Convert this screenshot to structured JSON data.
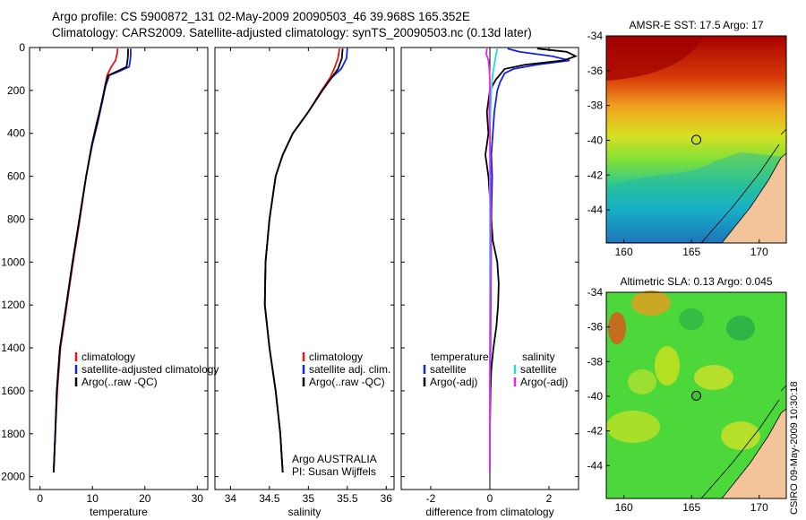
{
  "header": {
    "title_line1": "Argo profile: CS 5900872_131 02-May-2009 20090503_46 39.968S 165.352E",
    "title_line2": "Climatology: CARS2009. Satellite-adjusted climatology: synTS_20090503.nc (0.13d later)"
  },
  "credit": "CSIRO 09-May-2009 10:30:18",
  "colors": {
    "climatology": "#ee1111",
    "satellite": "#1122ee",
    "argo": "#000000",
    "sal_satellite": "#22dddd",
    "sal_argo": "#ee22ee",
    "land": "#f3c49a"
  },
  "chart_data": [
    {
      "type": "line",
      "id": "temperature",
      "xlabel": "temperature",
      "ylabel": "",
      "xlim": [
        -2,
        32
      ],
      "ylim": [
        2060,
        0
      ],
      "xticks": [
        0,
        10,
        20,
        30
      ],
      "yticks": [
        0,
        200,
        400,
        600,
        800,
        1000,
        1200,
        1400,
        1600,
        1800,
        2000
      ],
      "legend": {
        "position": "lower-left",
        "entries": [
          "climatology",
          "satellite-adjusted climatology",
          "Argo(..raw -QC)"
        ]
      },
      "series": [
        {
          "name": "climatology",
          "color_key": "climatology",
          "depth": [
            5,
            30,
            60,
            90,
            130,
            180,
            250,
            350,
            450,
            600,
            800,
            1000,
            1200,
            1400,
            1600,
            1800,
            1980
          ],
          "values": [
            14.8,
            14.7,
            14.4,
            13.6,
            12.8,
            12.4,
            11.9,
            10.8,
            9.9,
            8.8,
            7.6,
            6.3,
            5.1,
            3.9,
            3.3,
            2.9,
            2.6
          ]
        },
        {
          "name": "satellite-adjusted climatology",
          "color_key": "satellite",
          "depth": [
            5,
            30,
            60,
            90,
            110,
            130,
            180,
            250,
            350,
            450,
            600,
            800,
            1000,
            1200,
            1400,
            1600,
            1800,
            1980
          ],
          "values": [
            17.3,
            17.3,
            17.2,
            17.0,
            15.2,
            13.2,
            12.5,
            11.9,
            11.0,
            10.0,
            8.8,
            7.5,
            6.2,
            5.0,
            3.8,
            3.2,
            2.9,
            2.6
          ]
        },
        {
          "name": "Argo(..raw -QC)",
          "color_key": "argo",
          "depth": [
            5,
            30,
            60,
            90,
            110,
            130,
            180,
            250,
            350,
            450,
            600,
            800,
            1000,
            1200,
            1400,
            1600,
            1800,
            1980
          ],
          "values": [
            16.8,
            16.8,
            16.7,
            16.5,
            14.8,
            13.0,
            12.4,
            11.8,
            10.9,
            9.9,
            8.8,
            7.5,
            6.2,
            5.0,
            3.8,
            3.2,
            2.9,
            2.6
          ]
        }
      ]
    },
    {
      "type": "line",
      "id": "salinity",
      "xlabel": "salinity",
      "ylabel": "",
      "xlim": [
        33.8,
        36.1
      ],
      "ylim": [
        2060,
        0
      ],
      "xticks": [
        34,
        34.5,
        35,
        35.5,
        36
      ],
      "annotations": [
        "Argo AUSTRALIA",
        "PI: Susan Wijffels"
      ],
      "legend": {
        "position": "lower-right",
        "entries": [
          "climatology",
          "satellite adj. clim.",
          "Argo(..raw -QC)"
        ]
      },
      "series": [
        {
          "name": "climatology",
          "color_key": "climatology",
          "depth": [
            5,
            50,
            100,
            140,
            200,
            300,
            400,
            500,
            600,
            800,
            1000,
            1200,
            1400,
            1600,
            1800,
            1980
          ],
          "values": [
            35.4,
            35.38,
            35.33,
            35.28,
            35.17,
            35.0,
            34.8,
            34.67,
            34.58,
            34.5,
            34.45,
            34.44,
            34.5,
            34.58,
            34.64,
            34.67
          ]
        },
        {
          "name": "satellite adj. clim.",
          "color_key": "satellite",
          "depth": [
            5,
            50,
            100,
            140,
            200,
            300,
            400,
            500,
            600,
            800,
            1000,
            1200,
            1400,
            1600,
            1800,
            1980
          ],
          "values": [
            35.5,
            35.49,
            35.42,
            35.3,
            35.18,
            35.0,
            34.8,
            34.67,
            34.58,
            34.5,
            34.45,
            34.44,
            34.5,
            34.58,
            34.64,
            34.67
          ]
        },
        {
          "name": "Argo(..raw -QC)",
          "color_key": "argo",
          "depth": [
            5,
            50,
            100,
            140,
            200,
            300,
            400,
            500,
            600,
            800,
            1000,
            1200,
            1400,
            1600,
            1800,
            1980
          ],
          "values": [
            35.44,
            35.43,
            35.38,
            35.3,
            35.18,
            35.0,
            34.8,
            34.67,
            34.58,
            34.5,
            34.45,
            34.44,
            34.5,
            34.58,
            34.64,
            34.67
          ]
        }
      ]
    },
    {
      "type": "line",
      "id": "difference",
      "xlabel": "difference from climatology",
      "ylabel": "",
      "xlim": [
        -3,
        3
      ],
      "ylim": [
        2060,
        0
      ],
      "xticks": [
        -2,
        0,
        2
      ],
      "legend": {
        "position": "lower-center",
        "headers": [
          "temperature",
          "salinity"
        ],
        "entries": [
          "satellite",
          "Argo(-adj)",
          "satellite",
          "Argo(-adj)"
        ]
      },
      "series": [
        {
          "name": "temperature satellite",
          "color_key": "satellite",
          "depth": [
            5,
            20,
            40,
            60,
            80,
            100,
            120,
            160,
            200,
            300,
            400,
            500,
            600,
            800,
            1000,
            1200,
            1400,
            1600,
            1800,
            1980
          ],
          "values": [
            0.6,
            1.0,
            2.1,
            2.7,
            1.6,
            0.8,
            0.5,
            0.35,
            0.25,
            0.15,
            0.1,
            0.05,
            0.08,
            0.05,
            0.04,
            0.03,
            0.02,
            0.0,
            0.0,
            0.0
          ]
        },
        {
          "name": "temperature Argo(-adj)",
          "color_key": "argo",
          "depth": [
            5,
            20,
            40,
            60,
            80,
            100,
            150,
            200,
            300,
            400,
            500,
            600,
            700,
            800,
            900,
            1000,
            1100,
            1200,
            1300,
            1400,
            1500,
            1600,
            1800,
            1980
          ],
          "values": [
            1.6,
            2.6,
            2.9,
            2.5,
            1.2,
            0.5,
            0.2,
            0.0,
            -0.1,
            -0.05,
            -0.15,
            -0.05,
            0.0,
            0.05,
            0.1,
            0.25,
            0.3,
            0.28,
            0.22,
            0.12,
            0.05,
            0.02,
            0.0,
            0.0
          ]
        },
        {
          "name": "salinity satellite",
          "color_key": "sal_satellite",
          "depth": [
            5,
            40,
            80,
            120,
            200,
            300,
            400,
            600,
            800,
            1000,
            1200,
            1400,
            1600,
            1800,
            1980
          ],
          "values": [
            0.25,
            0.2,
            0.15,
            0.1,
            0.05,
            0.02,
            0.0,
            0.0,
            0.0,
            0.0,
            0.0,
            0.0,
            0.0,
            0.0,
            0.0
          ]
        },
        {
          "name": "salinity Argo(-adj)",
          "color_key": "sal_argo",
          "depth": [
            5,
            30,
            60,
            100,
            150,
            200,
            300,
            400,
            600,
            800,
            1000,
            1200,
            1400,
            1600,
            1800,
            1980
          ],
          "values": [
            -0.1,
            -0.12,
            -0.05,
            -0.02,
            0.0,
            0.0,
            -0.02,
            0.0,
            0.02,
            0.03,
            0.04,
            0.02,
            0.01,
            0.0,
            0.0,
            0.0
          ]
        }
      ]
    },
    {
      "type": "heatmap",
      "id": "sst_map",
      "title": "AMSR-E SST: 17.5 Argo: 17",
      "xlim": [
        158.7,
        172.0
      ],
      "ylim": [
        -45.9,
        -34.0
      ],
      "xticks": [
        160,
        165,
        170
      ],
      "yticks": [
        -34,
        -36,
        -38,
        -40,
        -42,
        -44
      ],
      "argo_position": [
        165.35,
        -39.97
      ]
    },
    {
      "type": "heatmap",
      "id": "sla_map",
      "title": "Altimetric SLA: 0.13 Argo: 0.045",
      "xlim": [
        158.7,
        172.0
      ],
      "ylim": [
        -45.9,
        -34.0
      ],
      "xticks": [
        160,
        165,
        170
      ],
      "yticks": [
        -34,
        -36,
        -38,
        -40,
        -42,
        -44
      ],
      "argo_position": [
        165.35,
        -39.97
      ]
    }
  ]
}
